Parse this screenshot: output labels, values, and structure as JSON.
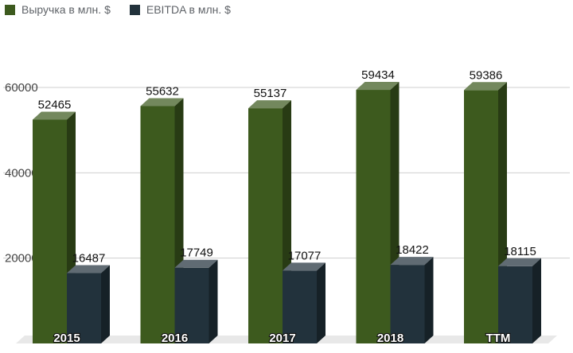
{
  "chart_data": {
    "type": "bar",
    "categories": [
      "2015",
      "2016",
      "2017",
      "2018",
      "TTM"
    ],
    "series": [
      {
        "name": "Выручка в млн. $",
        "values": [
          52465,
          55632,
          55137,
          59434,
          59386
        ],
        "color": "#3d5a1e"
      },
      {
        "name": "EBITDA в млн. $",
        "values": [
          16487,
          17749,
          17077,
          18422,
          18115
        ],
        "color": "#22323c"
      }
    ],
    "y_ticks": [
      20000,
      40000,
      60000
    ],
    "ylim": [
      0,
      62000
    ],
    "legend_position": "top-left",
    "grid": true,
    "style": "3d-columns"
  }
}
